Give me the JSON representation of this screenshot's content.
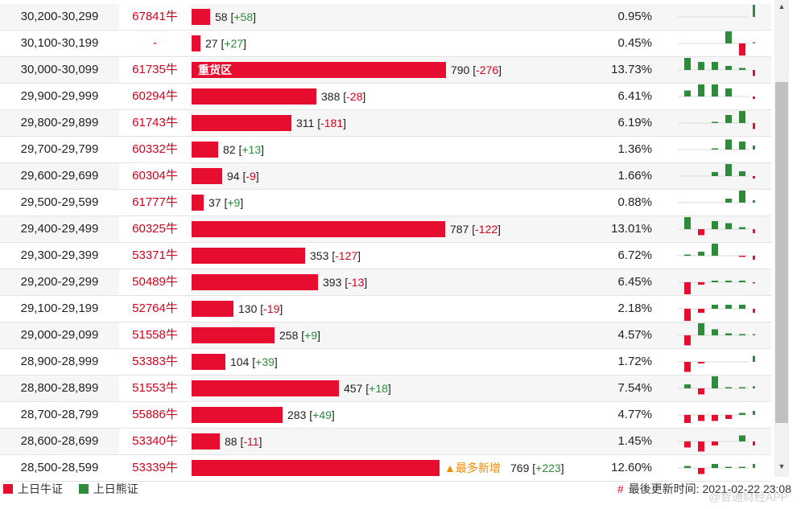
{
  "colors": {
    "bull": "#e60d2e",
    "bear": "#2e8b3a",
    "badge": "#f08c00"
  },
  "bar_max": 800,
  "rows": [
    {
      "range": "30,200-30,299",
      "count": "67841牛",
      "bar": 58,
      "value": "58",
      "change": "+58",
      "pct": "0.95%",
      "spark": [
        0,
        0,
        0,
        0,
        0,
        3
      ]
    },
    {
      "range": "30,100-30,199",
      "count": "-",
      "bar": 27,
      "value": "27",
      "change": "+27",
      "pct": "0.45%",
      "spark": [
        0,
        0,
        0,
        3,
        -3,
        0.3
      ]
    },
    {
      "range": "30,000-30,099",
      "count": "61735牛",
      "bar": 790,
      "label": "重货区",
      "value": "790",
      "change": "-276",
      "pct": "13.73%",
      "spark": [
        3,
        2,
        2,
        1,
        0.5,
        -1.5
      ]
    },
    {
      "range": "29,900-29,999",
      "count": "60294牛",
      "bar": 388,
      "value": "388",
      "change": "-28",
      "pct": "6.41%",
      "spark": [
        1.5,
        3,
        3,
        2,
        0,
        -0.6
      ]
    },
    {
      "range": "29,800-29,899",
      "count": "61743牛",
      "bar": 311,
      "value": "311",
      "change": "-181",
      "pct": "6.19%",
      "spark": [
        0,
        0,
        0.3,
        2,
        3,
        -1.5
      ]
    },
    {
      "range": "29,700-29,799",
      "count": "60332牛",
      "bar": 82,
      "value": "82",
      "change": "+13",
      "pct": "1.36%",
      "spark": [
        0,
        0,
        0.3,
        2.5,
        2,
        1
      ]
    },
    {
      "range": "29,600-29,699",
      "count": "60304牛",
      "bar": 94,
      "value": "94",
      "change": "-9",
      "pct": "1.66%",
      "spark": [
        0,
        0,
        1,
        3,
        1.2,
        -0.6
      ]
    },
    {
      "range": "29,500-29,599",
      "count": "61777牛",
      "bar": 37,
      "value": "37",
      "change": "+9",
      "pct": "0.88%",
      "spark": [
        0,
        0,
        0,
        1,
        3,
        0.6
      ]
    },
    {
      "range": "29,400-29,499",
      "count": "60325牛",
      "bar": 787,
      "value": "787",
      "change": "-122",
      "pct": "13.01%",
      "spark": [
        3,
        -1.5,
        2,
        1.5,
        0.5,
        -1
      ]
    },
    {
      "range": "29,300-29,399",
      "count": "53371牛",
      "bar": 353,
      "value": "353",
      "change": "-127",
      "pct": "6.72%",
      "spark": [
        0.3,
        1,
        3,
        0,
        -0.3,
        -1
      ]
    },
    {
      "range": "29,200-29,299",
      "count": "50489牛",
      "bar": 393,
      "value": "393",
      "change": "-13",
      "pct": "6.45%",
      "spark": [
        -3,
        -0.6,
        0.4,
        0.4,
        0.4,
        -0.3
      ]
    },
    {
      "range": "29,100-29,199",
      "count": "52764牛",
      "bar": 130,
      "value": "130",
      "change": "-19",
      "pct": "2.18%",
      "spark": [
        -3,
        -1,
        1,
        1,
        1,
        -1
      ]
    },
    {
      "range": "29,000-29,099",
      "count": "51558牛",
      "bar": 258,
      "value": "258",
      "change": "+9",
      "pct": "4.57%",
      "spark": [
        -2.5,
        3,
        1.5,
        0.5,
        0.3,
        0.3
      ]
    },
    {
      "range": "28,900-28,999",
      "count": "53383牛",
      "bar": 104,
      "value": "104",
      "change": "+39",
      "pct": "1.72%",
      "spark": [
        -2.5,
        -0.4,
        0,
        0,
        0,
        1.5
      ]
    },
    {
      "range": "28,800-28,899",
      "count": "51553牛",
      "bar": 457,
      "value": "457",
      "change": "+18",
      "pct": "7.54%",
      "spark": [
        1,
        -1.5,
        3,
        0.3,
        0.3,
        0.5
      ]
    },
    {
      "range": "28,700-28,799",
      "count": "55886牛",
      "bar": 283,
      "value": "283",
      "change": "+49",
      "pct": "4.77%",
      "spark": [
        -2,
        -1.5,
        -1.5,
        -1,
        0.5,
        1
      ]
    },
    {
      "range": "28,600-28,699",
      "count": "53340牛",
      "bar": 88,
      "value": "88",
      "change": "-11",
      "pct": "1.45%",
      "spark": [
        -1.5,
        -2.5,
        -1,
        0,
        1.5,
        -1
      ]
    },
    {
      "range": "28,500-28,599",
      "count": "53339牛",
      "bar": 769,
      "badge": "▲最多新增",
      "value": "769",
      "change": "+223",
      "pct": "12.60%",
      "spark": [
        0.5,
        -1.5,
        1,
        0.3,
        0.3,
        1
      ]
    }
  ],
  "legend": {
    "bull": "上日牛证",
    "bear": "上日熊证"
  },
  "update": {
    "hash": "#",
    "label": "最後更新时间:",
    "time": "2021-02-22 23:08"
  },
  "watermark": "@智通财经APP",
  "scroll": {
    "up_icon": "▲",
    "down_icon": "▼"
  }
}
